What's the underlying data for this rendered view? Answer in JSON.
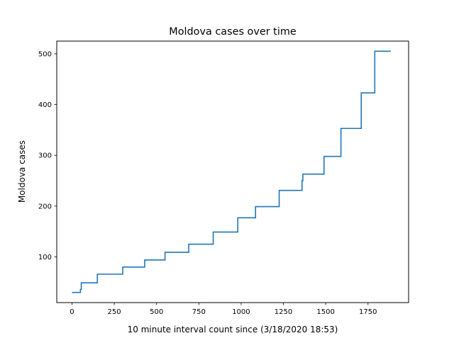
{
  "chart_data": {
    "type": "line",
    "title": "Moldova cases over time",
    "xlabel": "10 minute interval count since (3/18/2020 18:53)",
    "ylabel": "Moldova cases",
    "xlim": [
      -90,
      1990
    ],
    "ylim": [
      10,
      525
    ],
    "x_ticks": [
      0,
      250,
      500,
      750,
      1000,
      1250,
      1500,
      1750
    ],
    "x_tick_labels": [
      "0",
      "250",
      "500",
      "750",
      "1000",
      "1250",
      "1500",
      "1750"
    ],
    "y_ticks": [
      100,
      200,
      300,
      400,
      500
    ],
    "y_tick_labels": [
      "100",
      "200",
      "300",
      "400",
      "500"
    ],
    "grid": false,
    "line_color": "#1f77b4",
    "step": true,
    "series": [
      {
        "x": [
          0,
          50,
          55,
          150,
          300,
          430,
          550,
          690,
          835,
          980,
          1085,
          1225,
          1360,
          1365,
          1490,
          1590,
          1710,
          1790,
          1885
        ],
        "y": [
          30,
          36,
          49,
          66,
          80,
          94,
          109,
          125,
          149,
          177,
          199,
          231,
          250,
          263,
          298,
          353,
          423,
          505,
          505
        ]
      }
    ]
  }
}
